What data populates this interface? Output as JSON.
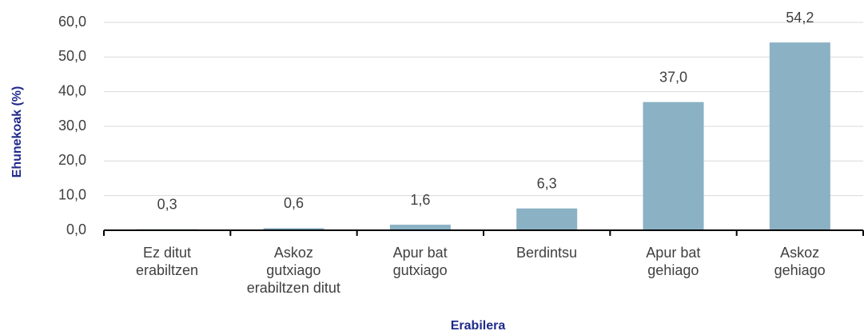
{
  "chart_data": {
    "type": "bar",
    "xlabel": "Erabilera",
    "ylabel": "Ehunekoak (%)",
    "categories": [
      "Ez ditut\nerabiltzen",
      "Askoz\ngutxiago\nerabiltzen ditut",
      "Apur bat\ngutxiago",
      "Berdintsu",
      "Apur bat\ngehiago",
      "Askoz\ngehiago"
    ],
    "values": [
      0.3,
      0.6,
      1.6,
      6.3,
      37.0,
      54.2
    ],
    "value_labels": [
      "0,3",
      "0,6",
      "1,6",
      "6,3",
      "37,0",
      "54,2"
    ],
    "color": "#8ab1c4",
    "ylim": [
      0,
      60
    ],
    "yticks": [
      {
        "value": 0,
        "label": "0,0"
      },
      {
        "value": 10,
        "label": "10,0"
      },
      {
        "value": 20,
        "label": "20,0"
      },
      {
        "value": 30,
        "label": "30,0"
      },
      {
        "value": 40,
        "label": "40,0"
      },
      {
        "value": 50,
        "label": "50,0"
      },
      {
        "value": 60,
        "label": "60,0"
      }
    ],
    "grid": true
  }
}
